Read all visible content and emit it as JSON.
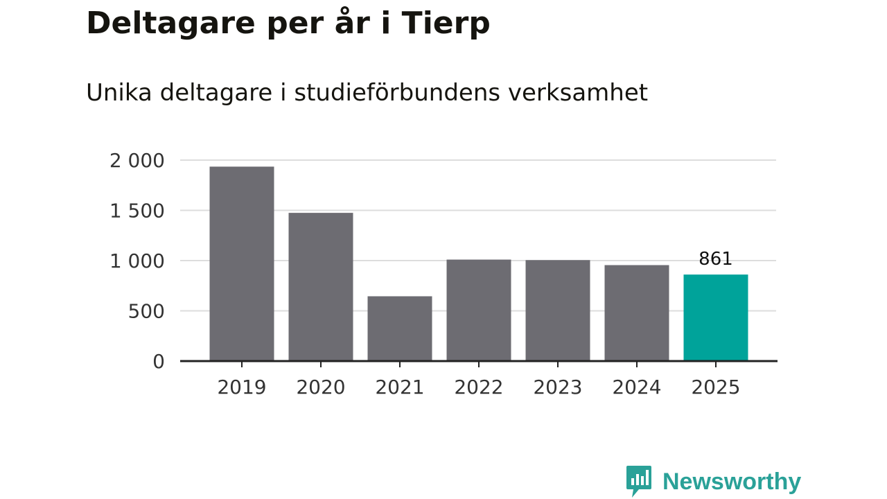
{
  "colors": {
    "bar": "#6d6c72",
    "highlight": "#00a39a",
    "grid": "#dddddd",
    "axis": "#222222",
    "brand": "#2aa198"
  },
  "brand": {
    "name": "Newsworthy",
    "icon": "chart-speech-bubble-icon"
  },
  "chart_data": {
    "type": "bar",
    "title": "Deltagare per år i Tierp",
    "subtitle": "Unika deltagare i studieförbundens verksamhet",
    "xlabel": "",
    "ylabel": "",
    "categories": [
      "2019",
      "2020",
      "2021",
      "2022",
      "2023",
      "2024",
      "2025"
    ],
    "values": [
      1935,
      1475,
      645,
      1010,
      1005,
      955,
      861
    ],
    "highlight_index": 6,
    "data_labels": [
      {
        "index": 6,
        "text": "861"
      }
    ],
    "ylim": [
      0,
      2000
    ],
    "yticks": [
      0,
      500,
      1000,
      1500,
      2000
    ],
    "ytick_labels": [
      "0",
      "500",
      "1 000",
      "1 500",
      "2 000"
    ],
    "grid": true,
    "legend": "none"
  }
}
